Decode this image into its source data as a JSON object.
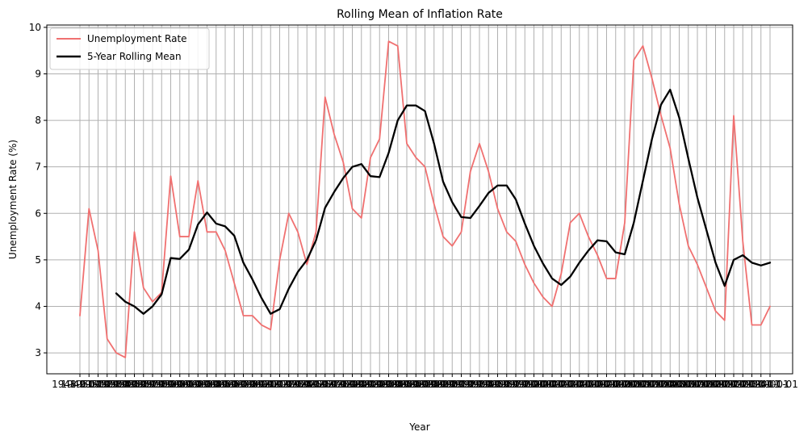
{
  "chart_data": {
    "type": "line",
    "title": "Rolling Mean of Inflation Rate",
    "xlabel": "Year",
    "ylabel": "Unemployment Rate (%)",
    "ylim": [
      2.55,
      10.05
    ],
    "yticks": [
      3,
      4,
      5,
      6,
      7,
      8,
      9,
      10
    ],
    "grid": true,
    "legend_position": "upper-left",
    "x": [
      1948,
      1949,
      1950,
      1951,
      1952,
      1953,
      1954,
      1955,
      1956,
      1957,
      1958,
      1959,
      1960,
      1961,
      1962,
      1963,
      1964,
      1965,
      1966,
      1967,
      1968,
      1969,
      1970,
      1971,
      1972,
      1973,
      1974,
      1975,
      1976,
      1977,
      1978,
      1979,
      1980,
      1981,
      1982,
      1983,
      1984,
      1985,
      1986,
      1987,
      1988,
      1989,
      1990,
      1991,
      1992,
      1993,
      1994,
      1995,
      1996,
      1997,
      1998,
      1999,
      2000,
      2001,
      2002,
      2003,
      2004,
      2005,
      2006,
      2007,
      2008,
      2009,
      2010,
      2011,
      2012,
      2013,
      2014,
      2015,
      2016,
      2017,
      2018,
      2019,
      2020,
      2021,
      2022,
      2023,
      2024
    ],
    "series": [
      {
        "name": "Unemployment Rate",
        "color": "#f07070",
        "values": [
          3.8,
          6.1,
          5.2,
          3.3,
          3.0,
          2.9,
          5.6,
          4.4,
          4.1,
          4.3,
          6.8,
          5.5,
          5.5,
          6.7,
          5.6,
          5.6,
          5.2,
          4.5,
          3.8,
          3.8,
          3.6,
          3.5,
          5.0,
          6.0,
          5.6,
          4.9,
          5.6,
          8.5,
          7.7,
          7.1,
          6.1,
          5.9,
          7.2,
          7.6,
          9.7,
          9.6,
          7.5,
          7.2,
          7.0,
          6.2,
          5.5,
          5.3,
          5.6,
          6.9,
          7.5,
          6.9,
          6.1,
          5.6,
          5.4,
          4.9,
          4.5,
          4.2,
          4.0,
          4.7,
          5.8,
          6.0,
          5.5,
          5.1,
          4.6,
          4.6,
          5.8,
          9.3,
          9.6,
          8.9,
          8.1,
          7.4,
          6.2,
          5.3,
          4.9,
          4.4,
          3.9,
          3.7,
          8.1,
          5.4,
          3.6,
          3.6,
          4.0
        ]
      },
      {
        "name": "5-Year Rolling Mean",
        "color": "#000000",
        "values": [
          null,
          null,
          null,
          null,
          4.28,
          4.1,
          4.0,
          3.84,
          4.0,
          4.26,
          5.04,
          5.02,
          5.22,
          5.76,
          6.02,
          5.78,
          5.72,
          5.52,
          4.94,
          4.58,
          4.18,
          3.84,
          3.94,
          4.38,
          4.74,
          5.0,
          5.42,
          6.12,
          6.46,
          6.76,
          7.0,
          7.06,
          6.8,
          6.78,
          7.3,
          8.0,
          8.32,
          8.32,
          8.2,
          7.5,
          6.68,
          6.24,
          5.92,
          5.9,
          6.16,
          6.44,
          6.6,
          6.6,
          6.3,
          5.78,
          5.3,
          4.92,
          4.6,
          4.46,
          4.64,
          4.94,
          5.2,
          5.42,
          5.4,
          5.16,
          5.12,
          5.8,
          6.7,
          7.6,
          8.34,
          8.66,
          8.06,
          7.18,
          6.34,
          5.64,
          4.94,
          4.44,
          5.0,
          5.1,
          4.94,
          4.88,
          4.94
        ]
      }
    ]
  }
}
